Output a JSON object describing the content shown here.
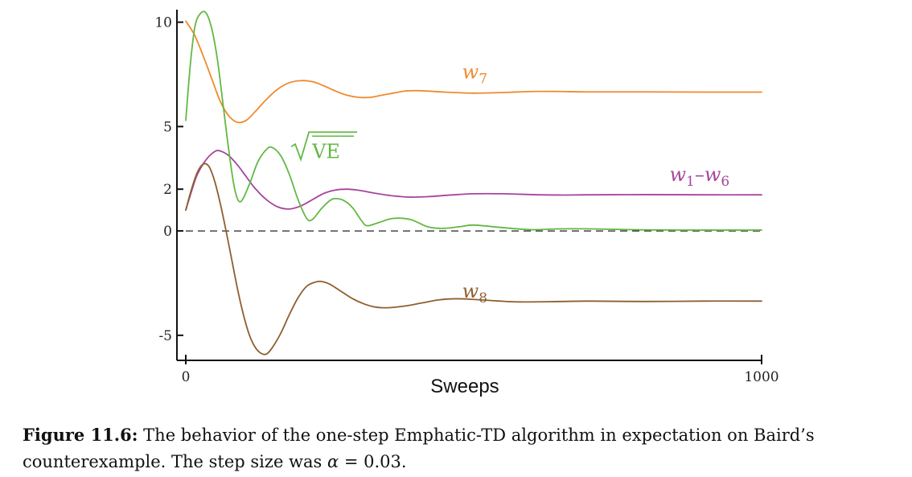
{
  "chart_data": {
    "type": "line",
    "xlabel": "Sweeps",
    "ylabel": "",
    "xlim": [
      0,
      1000
    ],
    "ylim": [
      -6.2,
      10.6
    ],
    "x_ticks": [
      {
        "value": 0,
        "label": "0"
      },
      {
        "value": 1000,
        "label": "1000"
      }
    ],
    "y_ticks": [
      {
        "value": 10,
        "label": "10"
      },
      {
        "value": 5,
        "label": "5"
      },
      {
        "value": 2,
        "label": "2"
      },
      {
        "value": 0,
        "label": "0"
      },
      {
        "value": -5,
        "label": "-5"
      }
    ],
    "zero_line": {
      "y": 0,
      "style": "dashed"
    },
    "grid": false,
    "series": [
      {
        "name": "w7",
        "label_main": "w",
        "label_sub": "7",
        "color": "#ef8a2e",
        "label_at": [
          480,
          7.3
        ],
        "points": [
          [
            0,
            10.05
          ],
          [
            15,
            9.4
          ],
          [
            30,
            8.4
          ],
          [
            45,
            7.3
          ],
          [
            60,
            6.2
          ],
          [
            75,
            5.5
          ],
          [
            90,
            5.2
          ],
          [
            105,
            5.3
          ],
          [
            120,
            5.7
          ],
          [
            140,
            6.3
          ],
          [
            160,
            6.8
          ],
          [
            180,
            7.1
          ],
          [
            200,
            7.2
          ],
          [
            220,
            7.15
          ],
          [
            240,
            6.95
          ],
          [
            260,
            6.7
          ],
          [
            280,
            6.5
          ],
          [
            300,
            6.4
          ],
          [
            320,
            6.4
          ],
          [
            340,
            6.5
          ],
          [
            360,
            6.6
          ],
          [
            380,
            6.7
          ],
          [
            400,
            6.72
          ],
          [
            420,
            6.7
          ],
          [
            450,
            6.65
          ],
          [
            500,
            6.6
          ],
          [
            550,
            6.63
          ],
          [
            600,
            6.68
          ],
          [
            650,
            6.68
          ],
          [
            700,
            6.66
          ],
          [
            800,
            6.66
          ],
          [
            900,
            6.65
          ],
          [
            1000,
            6.65
          ]
        ]
      },
      {
        "name": "w1–w6",
        "label_main": "w",
        "label_sub": "1",
        "label_main2": "w",
        "label_sub2": "6",
        "color": "#a6459c",
        "label_at": [
          840,
          2.4
        ],
        "points": [
          [
            0,
            1.0
          ],
          [
            10,
            1.9
          ],
          [
            20,
            2.7
          ],
          [
            35,
            3.4
          ],
          [
            50,
            3.8
          ],
          [
            60,
            3.83
          ],
          [
            75,
            3.6
          ],
          [
            90,
            3.15
          ],
          [
            105,
            2.6
          ],
          [
            120,
            2.05
          ],
          [
            140,
            1.5
          ],
          [
            160,
            1.15
          ],
          [
            180,
            1.05
          ],
          [
            200,
            1.2
          ],
          [
            220,
            1.5
          ],
          [
            240,
            1.8
          ],
          [
            260,
            1.96
          ],
          [
            280,
            2.0
          ],
          [
            300,
            1.95
          ],
          [
            330,
            1.8
          ],
          [
            360,
            1.68
          ],
          [
            390,
            1.62
          ],
          [
            420,
            1.64
          ],
          [
            460,
            1.72
          ],
          [
            500,
            1.78
          ],
          [
            550,
            1.78
          ],
          [
            600,
            1.74
          ],
          [
            650,
            1.72
          ],
          [
            700,
            1.73
          ],
          [
            800,
            1.74
          ],
          [
            900,
            1.73
          ],
          [
            1000,
            1.73
          ]
        ]
      },
      {
        "name": "VE",
        "color": "#63b845",
        "label_at": [
          225,
          3.5
        ],
        "points": [
          [
            0,
            5.3
          ],
          [
            8,
            8.0
          ],
          [
            16,
            9.8
          ],
          [
            25,
            10.4
          ],
          [
            35,
            10.45
          ],
          [
            45,
            9.7
          ],
          [
            55,
            8.2
          ],
          [
            65,
            6.0
          ],
          [
            75,
            3.8
          ],
          [
            85,
            2.0
          ],
          [
            95,
            1.4
          ],
          [
            110,
            2.2
          ],
          [
            125,
            3.3
          ],
          [
            140,
            3.9
          ],
          [
            150,
            4.0
          ],
          [
            165,
            3.6
          ],
          [
            180,
            2.7
          ],
          [
            195,
            1.5
          ],
          [
            210,
            0.6
          ],
          [
            220,
            0.55
          ],
          [
            235,
            1.05
          ],
          [
            250,
            1.45
          ],
          [
            260,
            1.55
          ],
          [
            275,
            1.45
          ],
          [
            290,
            1.1
          ],
          [
            305,
            0.5
          ],
          [
            315,
            0.25
          ],
          [
            335,
            0.4
          ],
          [
            360,
            0.6
          ],
          [
            390,
            0.55
          ],
          [
            420,
            0.2
          ],
          [
            445,
            0.12
          ],
          [
            475,
            0.2
          ],
          [
            500,
            0.28
          ],
          [
            550,
            0.16
          ],
          [
            600,
            0.06
          ],
          [
            650,
            0.1
          ],
          [
            700,
            0.1
          ],
          [
            800,
            0.05
          ],
          [
            900,
            0.04
          ],
          [
            1000,
            0.04
          ]
        ]
      },
      {
        "name": "w8",
        "label_main": "w",
        "label_sub": "8",
        "color": "#8f5e30",
        "label_at": [
          480,
          -3.2
        ],
        "points": [
          [
            0,
            1.0
          ],
          [
            10,
            2.0
          ],
          [
            20,
            2.8
          ],
          [
            30,
            3.2
          ],
          [
            40,
            3.1
          ],
          [
            50,
            2.4
          ],
          [
            60,
            1.3
          ],
          [
            70,
            0.0
          ],
          [
            80,
            -1.4
          ],
          [
            90,
            -2.8
          ],
          [
            100,
            -4.0
          ],
          [
            110,
            -4.95
          ],
          [
            120,
            -5.55
          ],
          [
            130,
            -5.85
          ],
          [
            140,
            -5.9
          ],
          [
            150,
            -5.6
          ],
          [
            165,
            -4.9
          ],
          [
            180,
            -4.0
          ],
          [
            195,
            -3.2
          ],
          [
            210,
            -2.65
          ],
          [
            225,
            -2.45
          ],
          [
            235,
            -2.42
          ],
          [
            250,
            -2.55
          ],
          [
            270,
            -2.9
          ],
          [
            290,
            -3.25
          ],
          [
            310,
            -3.5
          ],
          [
            330,
            -3.65
          ],
          [
            350,
            -3.68
          ],
          [
            380,
            -3.6
          ],
          [
            410,
            -3.45
          ],
          [
            440,
            -3.3
          ],
          [
            470,
            -3.25
          ],
          [
            500,
            -3.28
          ],
          [
            540,
            -3.35
          ],
          [
            580,
            -3.4
          ],
          [
            650,
            -3.38
          ],
          [
            700,
            -3.36
          ],
          [
            800,
            -3.38
          ],
          [
            900,
            -3.36
          ],
          [
            1000,
            -3.36
          ]
        ]
      }
    ]
  },
  "caption": {
    "label": "Figure 11.6:",
    "text_before": " The behavior of the one-step Emphatic-TD algorithm in expectation on Baird’s counterexample. The step size was ",
    "variable": "α",
    "text_after": " = 0.03."
  }
}
